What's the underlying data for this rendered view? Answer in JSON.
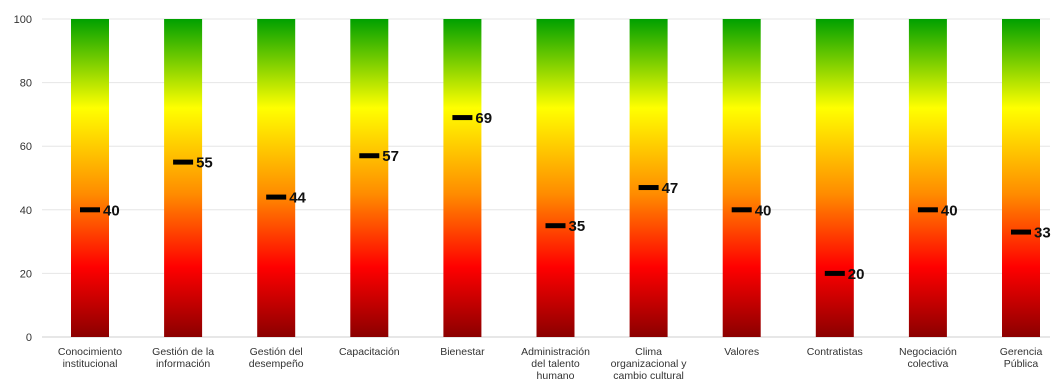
{
  "chart_data": {
    "type": "bar",
    "categories": [
      [
        "Conocimiento",
        "institucional"
      ],
      [
        "Gestión de la",
        "información"
      ],
      [
        "Gestión del",
        "desempeño"
      ],
      [
        "Capacitación"
      ],
      [
        "Bienestar"
      ],
      [
        "Administración",
        "del talento",
        "humano"
      ],
      [
        "Clima",
        "organizacional y",
        "cambio cultural"
      ],
      [
        "Valores"
      ],
      [
        "Contratistas"
      ],
      [
        "Negociación",
        "colectiva"
      ],
      [
        "Gerencia",
        "Pública"
      ]
    ],
    "values": [
      40,
      55,
      44,
      57,
      69,
      35,
      47,
      40,
      20,
      40,
      33
    ],
    "y_ticks": [
      0,
      20,
      40,
      60,
      80,
      100
    ],
    "ylim": [
      0,
      100
    ],
    "title": "",
    "xlabel": "",
    "ylabel": "",
    "grid": true,
    "legend": "none",
    "colors": {
      "gradient_top": "#00a000",
      "gradient_mid": "#ffff00",
      "gradient_orange": "#ff8c00",
      "gradient_red": "#ff0000",
      "gradient_bottom": "#8b0000",
      "marker": "#000000",
      "gridline": "#e6e6e6"
    }
  }
}
